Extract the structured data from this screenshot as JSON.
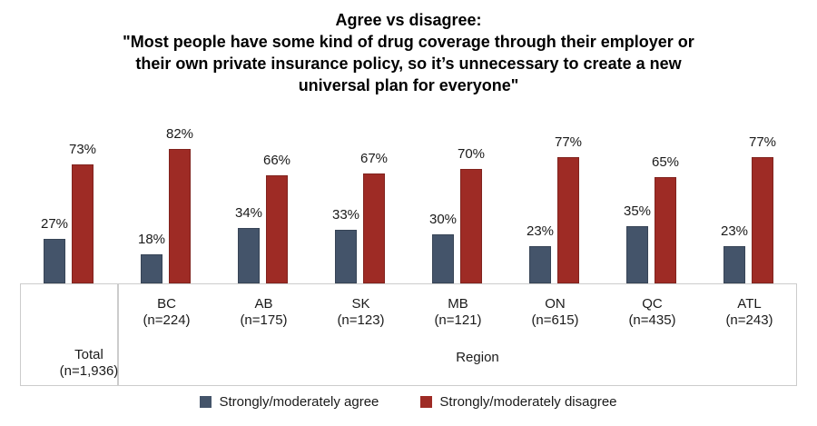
{
  "title": {
    "lines": [
      "Agree vs disagree:",
      "\"Most people have some kind of drug coverage through their employer or",
      "their own private insurance policy, so it’s unnecessary to create a new",
      "universal plan for everyone\""
    ]
  },
  "chart_data": {
    "type": "bar",
    "categories": [
      "Total",
      "BC",
      "AB",
      "SK",
      "MB",
      "ON",
      "QC",
      "ATL"
    ],
    "counts": [
      "(n=1,936)",
      "(n=224)",
      "(n=175)",
      "(n=123)",
      "(n=121)",
      "(n=615)",
      "(n=435)",
      "(n=243)"
    ],
    "axis_group_label": "Region",
    "series": [
      {
        "name": "Strongly/moderately agree",
        "color": "#44546A",
        "values": [
          27,
          18,
          34,
          33,
          30,
          23,
          35,
          23
        ]
      },
      {
        "name": "Strongly/moderately disagree",
        "color": "#9E2B25",
        "values": [
          73,
          82,
          66,
          67,
          70,
          77,
          65,
          77
        ]
      }
    ],
    "value_suffix": "%",
    "ylim": [
      0,
      100
    ],
    "grid": false,
    "legend_position": "bottom"
  }
}
